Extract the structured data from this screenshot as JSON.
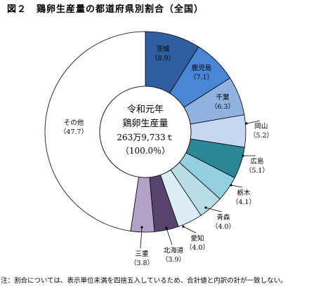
{
  "title": "図２　鶏卵生産量の都道府県別割合（全国）",
  "note": "注：割合については、表示単位未満を四捨五入しているため、合計値と内訳の計が一致しない。",
  "center": {
    "line1": "令和元年",
    "line2": "鶏卵生産量",
    "line3": "263万9,733ｔ",
    "line4": "（100.0％）"
  },
  "chart_data": {
    "type": "pie",
    "title": "図２　鶏卵生産量の都道府県別割合（全国）",
    "unit": "%",
    "start": "12 o'clock, clockwise",
    "categories": [
      "茨城",
      "鹿児島",
      "千葉",
      "岡山",
      "広島",
      "栃木",
      "青森",
      "愛知",
      "北海道",
      "三重",
      "その他"
    ],
    "values": [
      8.9,
      7.1,
      6.3,
      5.2,
      5.1,
      4.1,
      4.0,
      4.0,
      3.9,
      3.8,
      47.7
    ],
    "value_labels": [
      "（8.9）",
      "（7.1）",
      "（6.3）",
      "（5.2）",
      "（5.1）",
      "（4.1）",
      "（4.0）",
      "（4.0）",
      "（3.9）",
      "（3.8）",
      "（47.7）"
    ],
    "colors": [
      "#2f5fa0",
      "#4a86d6",
      "#8fb2e0",
      "#c6d8ef",
      "#2b8796",
      "#92cfe0",
      "#b8dde6",
      "#dbeef4",
      "#58456f",
      "#b3a2c8",
      "#ffffff"
    ]
  }
}
